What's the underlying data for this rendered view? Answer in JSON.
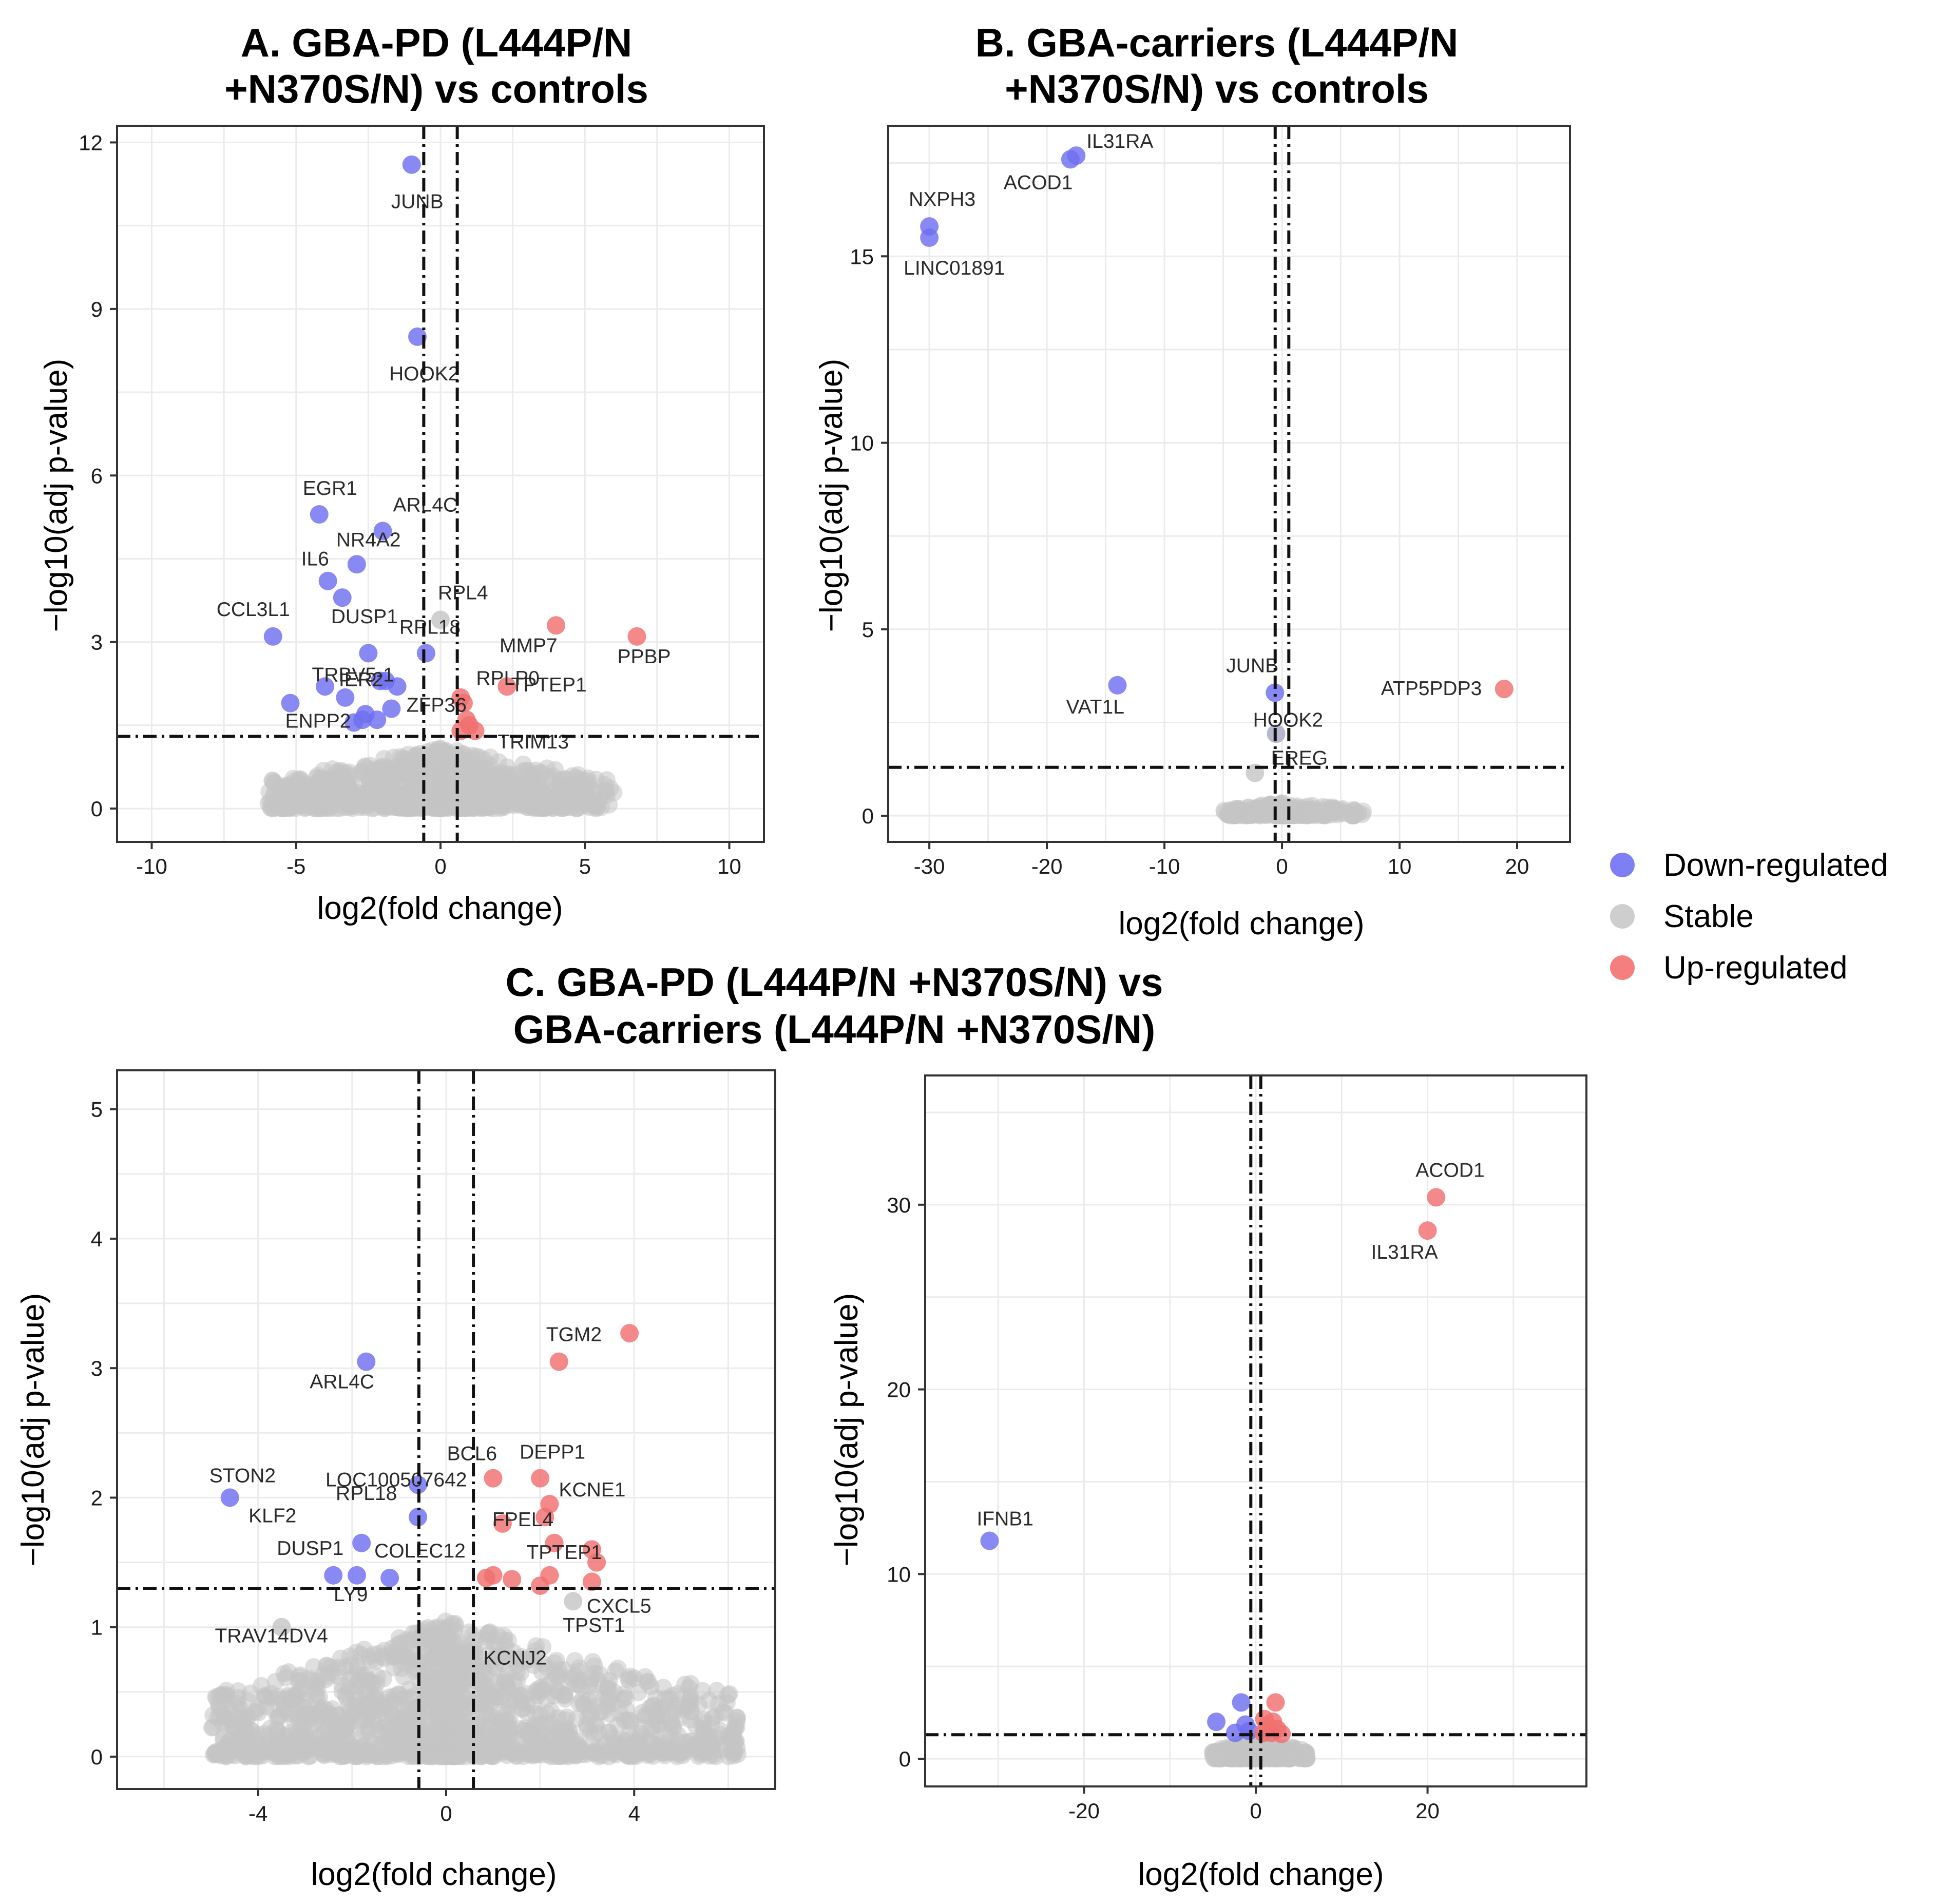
{
  "legend": {
    "items": [
      {
        "key": "down",
        "label": "Down-regulated",
        "color": "#3b3bf0"
      },
      {
        "key": "stable",
        "label": "Stable",
        "color": "#bdbdbd"
      },
      {
        "key": "up",
        "label": "Up-regulated",
        "color": "#f03b3b"
      }
    ]
  },
  "colors": {
    "down": "#6f6ff0",
    "up": "#f06f6f",
    "stable": "#c4c4c4",
    "grid": "#ebebeb",
    "frame": "#333333"
  },
  "chart_data": [
    {
      "id": "A",
      "type": "scatter",
      "title": [
        "A. GBA-PD (L444P/N",
        "+N370S/N) vs controls"
      ],
      "xlabel": "log2(fold change)",
      "ylabel": "−log10(adj p-value)",
      "xlim": [
        -11.2,
        11.2
      ],
      "ylim": [
        -0.6,
        12.3
      ],
      "xticks": [
        -10,
        -5,
        0,
        5,
        10
      ],
      "yticks": [
        0,
        3,
        6,
        9,
        12
      ],
      "thresholds": {
        "x": [
          -0.58,
          0.58
        ],
        "y": 1.3
      },
      "stable_cloud": {
        "x_range": [
          -6,
          6
        ],
        "y_max": 1.1,
        "count": 900
      },
      "points": [
        {
          "gene": "JUNB",
          "x": -1.0,
          "y": 11.6,
          "reg": "down",
          "label": true
        },
        {
          "gene": "HOOK2",
          "x": -0.8,
          "y": 8.5,
          "reg": "down",
          "label": true
        },
        {
          "gene": "EGR1",
          "x": -4.2,
          "y": 5.3,
          "reg": "down",
          "label": true
        },
        {
          "gene": "ARL4C",
          "x": -2.0,
          "y": 5.0,
          "reg": "down",
          "label": true
        },
        {
          "gene": "NR4A2",
          "x": -2.9,
          "y": 4.4,
          "reg": "down",
          "label": true
        },
        {
          "gene": "IL6",
          "x": -3.9,
          "y": 4.1,
          "reg": "down",
          "label": true
        },
        {
          "gene": "DUSP1",
          "x": -3.4,
          "y": 3.8,
          "reg": "down",
          "label": true
        },
        {
          "gene": "CCL3L1",
          "x": -5.8,
          "y": 3.1,
          "reg": "down",
          "label": true
        },
        {
          "gene": "TRBV5-1",
          "x": -2.5,
          "y": 2.8,
          "reg": "down",
          "label": true
        },
        {
          "gene": "RPL18",
          "x": -0.5,
          "y": 2.8,
          "reg": "down",
          "label": true
        },
        {
          "gene": "IER2",
          "x": -2.1,
          "y": 2.3,
          "reg": "down",
          "label": true
        },
        {
          "gene": "ENPP2",
          "x": -5.2,
          "y": 1.9,
          "reg": "down",
          "label": true
        },
        {
          "gene": "ZFP36",
          "x": -2.6,
          "y": 1.7,
          "reg": "down",
          "label": true
        },
        {
          "gene": "",
          "x": -4.0,
          "y": 2.2,
          "reg": "down",
          "label": false
        },
        {
          "gene": "",
          "x": -1.5,
          "y": 2.2,
          "reg": "down",
          "label": false
        },
        {
          "gene": "",
          "x": -1.9,
          "y": 2.3,
          "reg": "down",
          "label": false
        },
        {
          "gene": "",
          "x": -3.3,
          "y": 2.0,
          "reg": "down",
          "label": false
        },
        {
          "gene": "",
          "x": -2.7,
          "y": 1.6,
          "reg": "down",
          "label": false
        },
        {
          "gene": "",
          "x": -2.2,
          "y": 1.6,
          "reg": "down",
          "label": false
        },
        {
          "gene": "",
          "x": -1.7,
          "y": 1.8,
          "reg": "down",
          "label": false
        },
        {
          "gene": "",
          "x": -3.0,
          "y": 1.55,
          "reg": "down",
          "label": false
        },
        {
          "gene": "RPL4",
          "x": 0.0,
          "y": 3.4,
          "reg": "stable",
          "label": true
        },
        {
          "gene": "MMP7",
          "x": 4.0,
          "y": 3.3,
          "reg": "up",
          "label": true
        },
        {
          "gene": "PPBP",
          "x": 6.8,
          "y": 3.1,
          "reg": "up",
          "label": true
        },
        {
          "gene": "TPTEP1",
          "x": 2.3,
          "y": 2.2,
          "reg": "up",
          "label": true
        },
        {
          "gene": "RPLP0",
          "x": 0.7,
          "y": 2.0,
          "reg": "up",
          "label": true
        },
        {
          "gene": "TRIM13",
          "x": 1.0,
          "y": 1.5,
          "reg": "up",
          "label": true
        },
        {
          "gene": "",
          "x": 0.8,
          "y": 1.9,
          "reg": "up",
          "label": false
        },
        {
          "gene": "",
          "x": 0.9,
          "y": 1.6,
          "reg": "up",
          "label": false
        },
        {
          "gene": "",
          "x": 1.2,
          "y": 1.4,
          "reg": "up",
          "label": false
        },
        {
          "gene": "",
          "x": 0.7,
          "y": 1.4,
          "reg": "up",
          "label": false
        }
      ]
    },
    {
      "id": "B",
      "type": "scatter",
      "title": [
        "B. GBA-carriers (L444P/N",
        "+N370S/N) vs controls"
      ],
      "xlabel": "log2(fold change)",
      "ylabel": "−log10(adj p-value)",
      "xlim": [
        -33.5,
        24.5
      ],
      "ylim": [
        -0.7,
        18.5
      ],
      "xticks": [
        -30,
        -20,
        -10,
        0,
        10,
        20
      ],
      "yticks": [
        0,
        5,
        10,
        15
      ],
      "thresholds": {
        "x": [
          -0.58,
          0.58
        ],
        "y": 1.3
      },
      "stable_cloud": {
        "x_range": [
          -5,
          7
        ],
        "y_max": 0.35,
        "count": 260
      },
      "points": [
        {
          "gene": "IL31RA",
          "x": -17.5,
          "y": 17.7,
          "reg": "down",
          "label": true
        },
        {
          "gene": "ACOD1",
          "x": -18.0,
          "y": 17.6,
          "reg": "down",
          "label": true
        },
        {
          "gene": "NXPH3",
          "x": -30.0,
          "y": 15.8,
          "reg": "down",
          "label": true
        },
        {
          "gene": "LINC01891",
          "x": -30.0,
          "y": 15.5,
          "reg": "down",
          "label": true
        },
        {
          "gene": "VAT1L",
          "x": -14.0,
          "y": 3.5,
          "reg": "down",
          "label": true
        },
        {
          "gene": "JUNB",
          "x": -0.6,
          "y": 3.3,
          "reg": "down",
          "label": true
        },
        {
          "gene": "HOOK2",
          "x": -0.5,
          "y": 2.2,
          "reg": "down",
          "label": true
        },
        {
          "gene": "EREG",
          "x": -0.5,
          "y": 2.2,
          "reg": "stable",
          "label": true
        },
        {
          "gene": "",
          "x": -2.3,
          "y": 1.15,
          "reg": "stable",
          "label": false
        },
        {
          "gene": "ATP5PDP3",
          "x": 18.9,
          "y": 3.4,
          "reg": "up",
          "label": true
        }
      ]
    },
    {
      "id": "C",
      "type": "scatter",
      "title": [
        "C. GBA-PD (L444P/N +N370S/N) vs",
        "GBA-carriers (L444P/N +N370S/N)"
      ],
      "xlabel": "log2(fold change)",
      "ylabel": "−log10(adj p-value)",
      "xlim": [
        -7.0,
        7.0
      ],
      "ylim": [
        -0.25,
        5.3
      ],
      "xticks": [
        -4,
        0,
        4
      ],
      "yticks": [
        0,
        1,
        2,
        3,
        4,
        5
      ],
      "thresholds": {
        "x": [
          -0.58,
          0.58
        ],
        "y": 1.3
      },
      "stable_cloud": {
        "x_range": [
          -5,
          6.2
        ],
        "y_max": 1.05,
        "count": 1500
      },
      "points": [
        {
          "gene": "ARL4C",
          "x": -1.7,
          "y": 3.05,
          "reg": "down",
          "label": true
        },
        {
          "gene": "STON2",
          "x": -4.6,
          "y": 2.0,
          "reg": "down",
          "label": true
        },
        {
          "gene": "RPL18",
          "x": -0.6,
          "y": 2.1,
          "reg": "down",
          "label": true
        },
        {
          "gene": "KLF2",
          "x": -1.8,
          "y": 1.65,
          "reg": "down",
          "label": true
        },
        {
          "gene": "LOC100507642",
          "x": -0.6,
          "y": 1.85,
          "reg": "down",
          "label": true
        },
        {
          "gene": "DUSP1",
          "x": -2.4,
          "y": 1.4,
          "reg": "down",
          "label": true
        },
        {
          "gene": "LY9",
          "x": -1.9,
          "y": 1.4,
          "reg": "down",
          "label": true
        },
        {
          "gene": "COLEC12",
          "x": -1.2,
          "y": 1.38,
          "reg": "down",
          "label": true
        },
        {
          "gene": "TRAV14DV4",
          "x": -3.5,
          "y": 1.0,
          "reg": "stable",
          "label": true
        },
        {
          "gene": "TGM2",
          "x": 2.4,
          "y": 3.05,
          "reg": "up",
          "label": true
        },
        {
          "gene": "",
          "x": 3.9,
          "y": 3.27,
          "reg": "up",
          "label": false
        },
        {
          "gene": "BCL6",
          "x": 1.0,
          "y": 2.15,
          "reg": "up",
          "label": true
        },
        {
          "gene": "DEPP1",
          "x": 2.0,
          "y": 2.15,
          "reg": "up",
          "label": true
        },
        {
          "gene": "KCNE1",
          "x": 2.2,
          "y": 1.95,
          "reg": "up",
          "label": true
        },
        {
          "gene": "FPEL4",
          "x": 1.2,
          "y": 1.8,
          "reg": "up",
          "label": true
        },
        {
          "gene": "",
          "x": 2.1,
          "y": 1.85,
          "reg": "up",
          "label": false
        },
        {
          "gene": "",
          "x": 2.3,
          "y": 1.65,
          "reg": "up",
          "label": false
        },
        {
          "gene": "TPTEP1",
          "x": 2.2,
          "y": 1.4,
          "reg": "up",
          "label": true
        },
        {
          "gene": "",
          "x": 3.1,
          "y": 1.6,
          "reg": "up",
          "label": false
        },
        {
          "gene": "",
          "x": 3.2,
          "y": 1.5,
          "reg": "up",
          "label": false
        },
        {
          "gene": "CXCL5",
          "x": 3.1,
          "y": 1.35,
          "reg": "up",
          "label": true
        },
        {
          "gene": "",
          "x": 1.0,
          "y": 1.4,
          "reg": "up",
          "label": false
        },
        {
          "gene": "",
          "x": 0.85,
          "y": 1.38,
          "reg": "up",
          "label": false
        },
        {
          "gene": "",
          "x": 1.4,
          "y": 1.37,
          "reg": "up",
          "label": false
        },
        {
          "gene": "",
          "x": 2.0,
          "y": 1.32,
          "reg": "up",
          "label": false
        },
        {
          "gene": "TPST1",
          "x": 2.7,
          "y": 1.2,
          "reg": "stable",
          "label": true
        },
        {
          "gene": "KCNJ2",
          "x": 0.9,
          "y": 0.95,
          "reg": "stable",
          "label": true
        }
      ]
    },
    {
      "id": "D",
      "type": "scatter",
      "title": [
        "",
        ""
      ],
      "xlabel": "log2(fold change)",
      "ylabel": "−log10(adj p-value)",
      "xlim": [
        -38.5,
        38.5
      ],
      "ylim": [
        -1.5,
        37.0
      ],
      "xticks": [
        -20,
        0,
        20
      ],
      "yticks": [
        0,
        10,
        20,
        30
      ],
      "thresholds": {
        "x": [
          -0.58,
          0.58
        ],
        "y": 1.3
      },
      "stable_cloud": {
        "x_range": [
          -5,
          6
        ],
        "y_max": 1.0,
        "count": 500
      },
      "points": [
        {
          "gene": "ACOD1",
          "x": 21.0,
          "y": 30.4,
          "reg": "up",
          "label": true
        },
        {
          "gene": "IL31RA",
          "x": 20.0,
          "y": 28.6,
          "reg": "up",
          "label": true
        },
        {
          "gene": "IFNB1",
          "x": -31.0,
          "y": 11.8,
          "reg": "down",
          "label": true
        },
        {
          "gene": "",
          "x": -1.7,
          "y": 3.05,
          "reg": "down",
          "label": false
        },
        {
          "gene": "",
          "x": -4.6,
          "y": 2.0,
          "reg": "down",
          "label": false
        },
        {
          "gene": "",
          "x": -2.4,
          "y": 1.4,
          "reg": "down",
          "label": false
        },
        {
          "gene": "",
          "x": -1.2,
          "y": 1.85,
          "reg": "down",
          "label": false
        },
        {
          "gene": "",
          "x": -0.8,
          "y": 1.5,
          "reg": "down",
          "label": false
        },
        {
          "gene": "",
          "x": 2.3,
          "y": 3.05,
          "reg": "up",
          "label": false
        },
        {
          "gene": "",
          "x": 1.0,
          "y": 2.15,
          "reg": "up",
          "label": false
        },
        {
          "gene": "",
          "x": 2.0,
          "y": 2.0,
          "reg": "up",
          "label": false
        },
        {
          "gene": "",
          "x": 1.3,
          "y": 1.8,
          "reg": "up",
          "label": false
        },
        {
          "gene": "",
          "x": 2.5,
          "y": 1.6,
          "reg": "up",
          "label": false
        },
        {
          "gene": "",
          "x": 1.8,
          "y": 1.4,
          "reg": "up",
          "label": false
        },
        {
          "gene": "",
          "x": 0.9,
          "y": 1.4,
          "reg": "up",
          "label": false
        },
        {
          "gene": "",
          "x": 3.0,
          "y": 1.35,
          "reg": "up",
          "label": false
        }
      ]
    }
  ]
}
